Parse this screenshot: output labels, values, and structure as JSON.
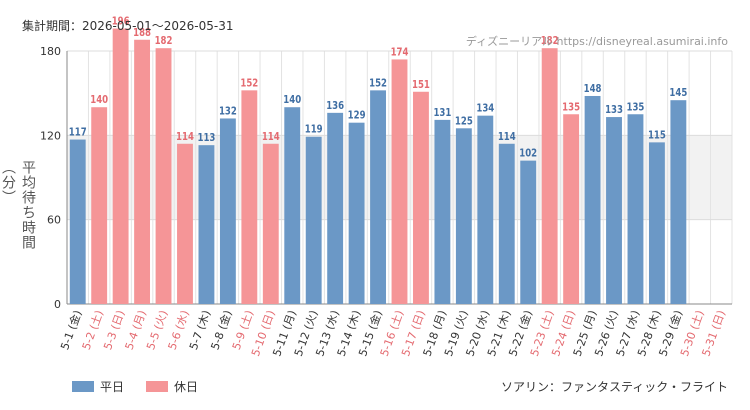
{
  "header": {
    "period_text": "集計期間：2026-05-01～2026-05-31",
    "watermark_text": "ディズニーリアル https://disneyreal.asumirai.info"
  },
  "footer": {
    "attraction_text": "ソアリン：ファンタスティック・フライト"
  },
  "colors": {
    "weekday": "#6b98c6",
    "holiday": "#f59597",
    "weekday_label": "#3f6ea3",
    "holiday_label": "#e46a70",
    "grid": "#e3e3e3",
    "band": "#f2f2f2"
  },
  "chart_data": {
    "type": "bar",
    "ylabel": "平均待ち時間（分）",
    "ylim": [
      0,
      180
    ],
    "yticks": [
      0,
      60,
      120,
      180
    ],
    "shaded_band": [
      60,
      120
    ],
    "grid": true,
    "legend_position": "bottom-left",
    "legend": [
      {
        "label": "平日",
        "kind": "weekday"
      },
      {
        "label": "休日",
        "kind": "holiday"
      }
    ],
    "categories": [
      "5-1 (金)",
      "5-2 (土)",
      "5-3 (日)",
      "5-4 (月)",
      "5-5 (火)",
      "5-6 (水)",
      "5-7 (木)",
      "5-8 (金)",
      "5-9 (土)",
      "5-10 (日)",
      "5-11 (月)",
      "5-12 (火)",
      "5-13 (水)",
      "5-14 (木)",
      "5-15 (金)",
      "5-16 (土)",
      "5-17 (日)",
      "5-18 (月)",
      "5-19 (火)",
      "5-20 (水)",
      "5-21 (木)",
      "5-22 (金)",
      "5-23 (土)",
      "5-24 (日)",
      "5-25 (月)",
      "5-26 (火)",
      "5-27 (水)",
      "5-28 (木)",
      "5-29 (金)",
      "5-30 (土)",
      "5-31 (日)"
    ],
    "values": [
      117,
      140,
      196,
      188,
      182,
      114,
      113,
      132,
      152,
      114,
      140,
      119,
      136,
      129,
      152,
      174,
      151,
      131,
      125,
      134,
      114,
      102,
      182,
      135,
      148,
      133,
      135,
      115,
      145,
      null,
      null
    ],
    "day_type": [
      "weekday",
      "holiday",
      "holiday",
      "holiday",
      "holiday",
      "holiday",
      "weekday",
      "weekday",
      "holiday",
      "holiday",
      "weekday",
      "weekday",
      "weekday",
      "weekday",
      "weekday",
      "holiday",
      "holiday",
      "weekday",
      "weekday",
      "weekday",
      "weekday",
      "weekday",
      "holiday",
      "holiday",
      "weekday",
      "weekday",
      "weekday",
      "weekday",
      "weekday",
      "holiday",
      "holiday"
    ]
  }
}
